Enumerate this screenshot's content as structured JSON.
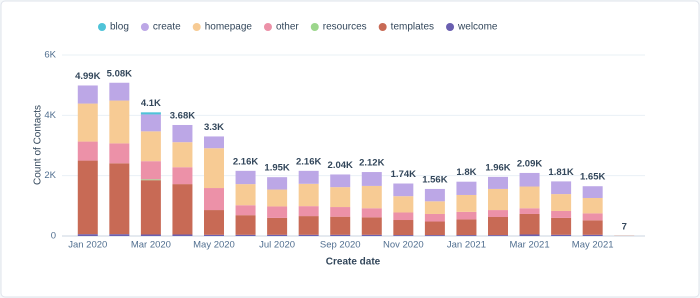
{
  "chart_data": {
    "type": "stacked_bar",
    "categories": [
      "Jan 2020",
      null,
      "Mar 2020",
      null,
      "May 2020",
      null,
      "Jul 2020",
      null,
      "Sep 2020",
      null,
      "Nov 2020",
      null,
      "Jan 2021",
      null,
      "Mar 2021",
      null,
      "May 2021",
      null
    ],
    "series": [
      {
        "name": "blog",
        "color": "#4fc3d8",
        "values": [
          0,
          0,
          70,
          0,
          0,
          0,
          0,
          0,
          0,
          0,
          0,
          0,
          0,
          0,
          0,
          0,
          0,
          0
        ]
      },
      {
        "name": "create",
        "color": "#bca7e6",
        "values": [
          600,
          590,
          560,
          570,
          390,
          440,
          410,
          430,
          420,
          460,
          420,
          410,
          440,
          400,
          450,
          420,
          390,
          0
        ]
      },
      {
        "name": "homepage",
        "color": "#f7cb94",
        "values": [
          1260,
          1420,
          990,
          830,
          1320,
          700,
          560,
          740,
          660,
          740,
          540,
          420,
          560,
          700,
          720,
          560,
          510,
          0
        ]
      },
      {
        "name": "other",
        "color": "#ec91a8",
        "values": [
          630,
          660,
          600,
          560,
          730,
          330,
          380,
          330,
          320,
          300,
          250,
          250,
          250,
          230,
          190,
          230,
          230,
          0
        ]
      },
      {
        "name": "resources",
        "color": "#9cd68c",
        "values": [
          0,
          0,
          30,
          0,
          0,
          0,
          0,
          0,
          0,
          0,
          0,
          0,
          0,
          0,
          0,
          0,
          0,
          0
        ]
      },
      {
        "name": "templates",
        "color": "#c86a55",
        "values": [
          2440,
          2350,
          1800,
          1670,
          820,
          650,
          560,
          620,
          600,
          580,
          500,
          450,
          520,
          600,
          680,
          560,
          480,
          7
        ]
      },
      {
        "name": "welcome",
        "color": "#6a5fb0",
        "values": [
          60,
          60,
          50,
          50,
          40,
          40,
          40,
          40,
          40,
          40,
          30,
          30,
          30,
          30,
          50,
          40,
          40,
          0
        ]
      }
    ],
    "totals": [
      4990,
      5080,
      4100,
      3680,
      3300,
      2160,
      1950,
      2160,
      2040,
      2120,
      1740,
      1560,
      1800,
      1960,
      2090,
      1810,
      1650,
      7
    ],
    "total_labels": [
      "4.99K",
      "5.08K",
      "4.1K",
      "3.68K",
      "3.3K",
      "2.16K",
      "1.95K",
      "2.16K",
      "2.04K",
      "2.12K",
      "1.74K",
      "1.56K",
      "1.8K",
      "1.96K",
      "2.09K",
      "1.81K",
      "1.65K",
      "7"
    ],
    "ylim": [
      0,
      6000
    ],
    "yticks": [
      0,
      {
        "value": 2000,
        "label": "2K"
      },
      {
        "value": 4000,
        "label": "4K"
      },
      {
        "value": 6000,
        "label": "6K"
      }
    ],
    "y_label": "Count of Contacts",
    "x_label": "Create date",
    "grid": true,
    "legend": "top"
  }
}
